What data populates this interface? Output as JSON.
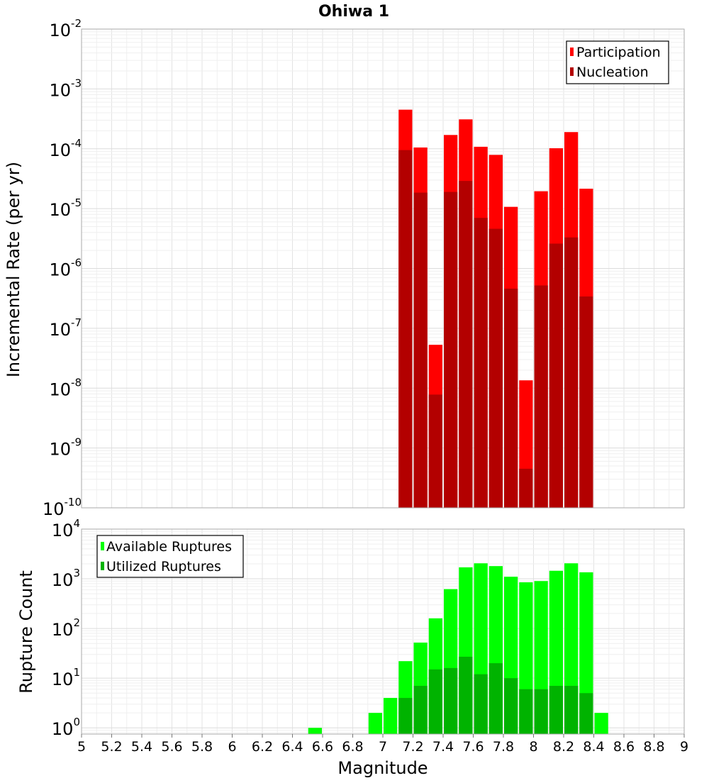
{
  "chart_data": [
    {
      "type": "bar",
      "title": "Ohiwa 1",
      "ylabel": "Incremental Rate (per yr)",
      "xlabel": "",
      "y_scale": "log",
      "ylim": [
        1e-10,
        0.01
      ],
      "y_tick_exponents": [
        -2,
        -3,
        -4,
        -5,
        -6,
        -7,
        -8,
        -9,
        -10
      ],
      "x_range": [
        5,
        9
      ],
      "bin_width": 0.1,
      "grid": true,
      "legend": "top-right",
      "bar_style": "overlay",
      "x": [
        7.15,
        7.25,
        7.35,
        7.45,
        7.55,
        7.65,
        7.75,
        7.85,
        7.95,
        8.05,
        8.15,
        8.25,
        8.35
      ],
      "series": [
        {
          "name": "Participation",
          "color": "#ff0000",
          "values": [
            0.00045,
            0.000105,
            5.3e-08,
            0.00017,
            0.00031,
            0.000108,
            7.9e-05,
            1.07e-05,
            1.35e-08,
            1.95e-05,
            0.000102,
            0.00019,
            2.15e-05
          ]
        },
        {
          "name": "Nucleation",
          "color": "#b30000",
          "values": [
            9.5e-05,
            1.85e-05,
            7.8e-09,
            1.9e-05,
            2.9e-05,
            7e-06,
            4.6e-06,
            4.6e-07,
            4.5e-10,
            5.2e-07,
            2.6e-06,
            3.3e-06,
            3.4e-07
          ]
        }
      ]
    },
    {
      "type": "bar",
      "title": "",
      "ylabel": "Rupture Count",
      "xlabel": "Magnitude",
      "y_scale": "log",
      "ylim": [
        0.75,
        10000
      ],
      "y_tick_exponents": [
        4,
        3,
        2,
        1,
        0
      ],
      "x_range": [
        5,
        9
      ],
      "x_ticks": [
        "5",
        "5.2",
        "5.4",
        "5.6",
        "5.8",
        "6",
        "6.2",
        "6.4",
        "6.6",
        "6.8",
        "7",
        "7.2",
        "7.4",
        "7.6",
        "7.8",
        "8",
        "8.2",
        "8.4",
        "8.6",
        "8.8",
        "9"
      ],
      "bin_width": 0.1,
      "grid": true,
      "legend": "top-left",
      "bar_style": "overlay",
      "x": [
        6.55,
        6.95,
        7.05,
        7.15,
        7.25,
        7.35,
        7.45,
        7.55,
        7.65,
        7.75,
        7.85,
        7.95,
        8.05,
        8.15,
        8.25,
        8.35,
        8.45
      ],
      "series": [
        {
          "name": "Available Ruptures",
          "color": "#00ff00",
          "values": [
            1,
            2,
            4,
            22,
            52,
            160,
            620,
            1700,
            2050,
            1800,
            1100,
            850,
            900,
            1450,
            2050,
            1350,
            2
          ]
        },
        {
          "name": "Utilized Ruptures",
          "color": "#00b300",
          "values": [
            null,
            null,
            null,
            4,
            7,
            15,
            16,
            27,
            12,
            20,
            10,
            6,
            6,
            7,
            7,
            5,
            null
          ]
        }
      ]
    }
  ]
}
